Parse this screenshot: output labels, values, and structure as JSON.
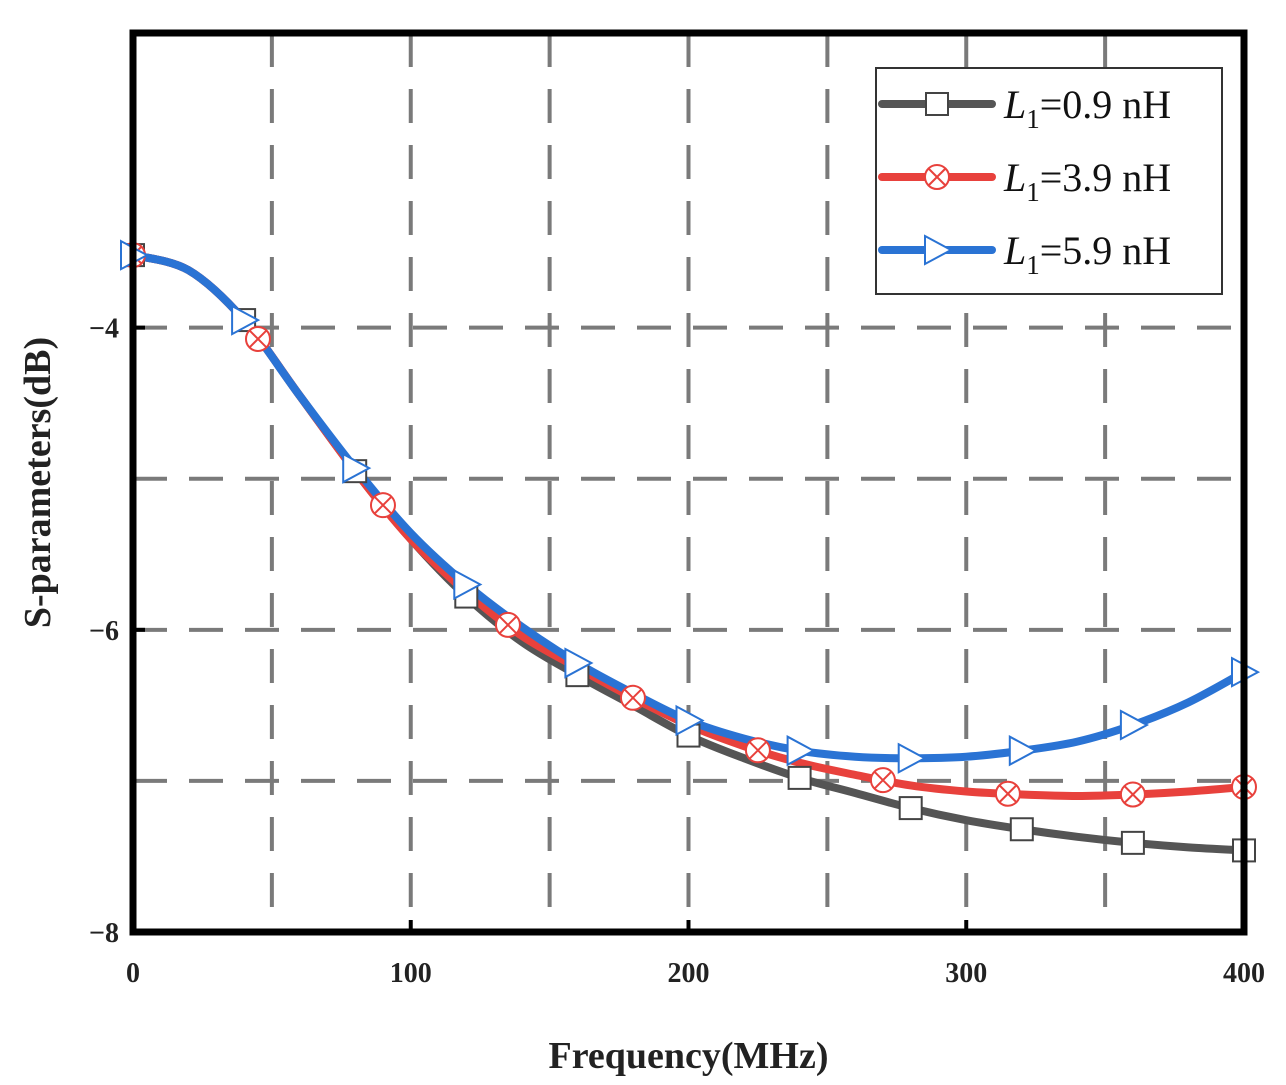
{
  "chart_data": {
    "type": "line",
    "title": "",
    "xlabel": "Frequency(MHz)",
    "ylabel": "S-parameters(dB)",
    "xlim": [
      0,
      400
    ],
    "ylim": [
      -8,
      -2.05
    ],
    "xticks": [
      0,
      100,
      200,
      300,
      400
    ],
    "xtick_labels": [
      "0",
      "100",
      "200",
      "300",
      "400"
    ],
    "yticks": [
      -4,
      -6,
      -8
    ],
    "ytick_labels": [
      "−4",
      "−6",
      "−8"
    ],
    "x_gridlines": [
      50,
      100,
      150,
      200,
      250,
      300,
      350
    ],
    "y_gridlines": [
      -4,
      -5,
      -6,
      -7
    ],
    "grid": true,
    "legend_position": "top-right",
    "series": [
      {
        "name": "L1=0.9 nH",
        "legend_var": "L",
        "legend_sub": "1",
        "legend_value": "=0.9 nH",
        "color": "#555555",
        "marker": "square",
        "x": [
          0,
          20,
          40,
          60,
          80,
          100,
          120,
          140,
          160,
          180,
          200,
          220,
          240,
          260,
          280,
          300,
          320,
          340,
          360,
          380,
          400
        ],
        "y": [
          -3.52,
          -3.62,
          -3.95,
          -4.45,
          -4.95,
          -5.4,
          -5.78,
          -6.08,
          -6.3,
          -6.5,
          -6.7,
          -6.85,
          -6.98,
          -7.08,
          -7.18,
          -7.26,
          -7.32,
          -7.37,
          -7.41,
          -7.44,
          -7.46
        ],
        "marker_x": [
          0,
          40,
          80,
          120,
          160,
          200,
          240,
          280,
          320,
          360,
          400
        ]
      },
      {
        "name": "L1=3.9 nH",
        "legend_var": "L",
        "legend_sub": "1",
        "legend_value": "=3.9 nH",
        "color": "#e8413c",
        "marker": "circle-x",
        "x": [
          0,
          20,
          40,
          60,
          80,
          100,
          120,
          140,
          160,
          180,
          200,
          220,
          240,
          260,
          280,
          300,
          320,
          340,
          360,
          380,
          400
        ],
        "y": [
          -3.52,
          -3.62,
          -3.95,
          -4.45,
          -4.95,
          -5.4,
          -5.75,
          -6.04,
          -6.25,
          -6.45,
          -6.63,
          -6.77,
          -6.88,
          -6.96,
          -7.03,
          -7.07,
          -7.09,
          -7.1,
          -7.09,
          -7.07,
          -7.04
        ],
        "marker_x": [
          0,
          45,
          90,
          135,
          180,
          225,
          270,
          315,
          360,
          400
        ]
      },
      {
        "name": "L1=5.9 nH",
        "legend_var": "L",
        "legend_sub": "1",
        "legend_value": "=5.9 nH",
        "color": "#2a73d4",
        "marker": "triangle-right",
        "x": [
          0,
          20,
          40,
          60,
          80,
          100,
          120,
          140,
          160,
          180,
          200,
          220,
          240,
          260,
          280,
          300,
          320,
          340,
          360,
          380,
          400
        ],
        "y": [
          -3.52,
          -3.62,
          -3.95,
          -4.45,
          -4.93,
          -5.36,
          -5.7,
          -5.98,
          -6.22,
          -6.42,
          -6.6,
          -6.72,
          -6.8,
          -6.84,
          -6.85,
          -6.84,
          -6.8,
          -6.74,
          -6.63,
          -6.48,
          -6.28
        ],
        "marker_x": [
          0,
          40,
          80,
          120,
          160,
          200,
          240,
          280,
          320,
          360,
          400
        ]
      }
    ]
  }
}
